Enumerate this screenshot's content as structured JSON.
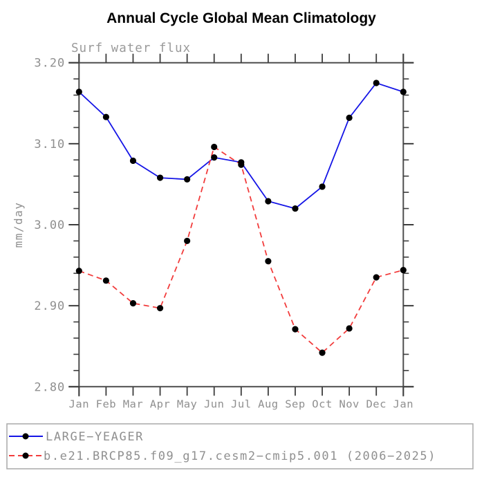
{
  "title": "Annual Cycle Global Mean Climatology",
  "subtitle": "Surf water flux",
  "ylabel": "mm/day",
  "chart_data": {
    "type": "line",
    "categories": [
      "Jan",
      "Feb",
      "Mar",
      "Apr",
      "May",
      "Jun",
      "Jul",
      "Aug",
      "Sep",
      "Oct",
      "Nov",
      "Dec",
      "Jan"
    ],
    "series": [
      {
        "name": "LARGE−YEAGER",
        "color": "#1414e6",
        "line_style": "solid",
        "marker": "filled-circle",
        "marker_color": "#000000",
        "values": [
          3.164,
          3.133,
          3.079,
          3.058,
          3.056,
          3.083,
          3.077,
          3.029,
          3.02,
          3.047,
          3.132,
          3.175,
          3.164
        ]
      },
      {
        "name": "b.e21.BRCP85.f09_g17.cesm2−cmip5.001 (2006−2025)",
        "color": "#f23c3c",
        "line_style": "dashed",
        "marker": "filled-circle",
        "marker_color": "#000000",
        "values": [
          2.943,
          2.931,
          2.903,
          2.897,
          2.98,
          3.096,
          3.074,
          2.955,
          2.871,
          2.842,
          2.872,
          2.935,
          2.944
        ]
      }
    ],
    "ylim": [
      2.8,
      3.2
    ],
    "yticks": [
      2.8,
      2.9,
      3.0,
      3.1,
      3.2
    ],
    "ytick_labels": [
      "2.80",
      "2.90",
      "3.00",
      "3.10",
      "3.20"
    ],
    "y_minor_step": 0.02,
    "grid": "off",
    "legend_position": "bottom"
  },
  "legend": {
    "items": [
      {
        "label": "LARGE−YEAGER"
      },
      {
        "label": "b.e21.BRCP85.f09_g17.cesm2−cmip5.001 (2006−2025)"
      }
    ]
  }
}
